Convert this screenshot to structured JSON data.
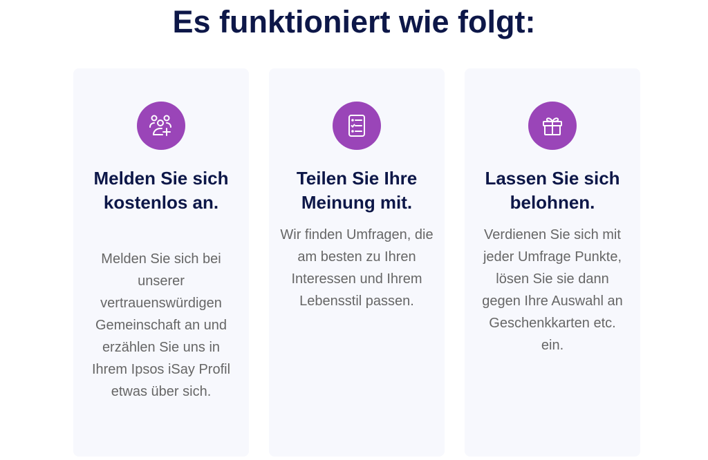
{
  "heading": "Es funktioniert wie folgt:",
  "accent_color": "#9a45b8",
  "cards": [
    {
      "icon": "users-add-icon",
      "title": "Melden Sie sich kostenlos an.",
      "text": "Melden Sie sich bei unserer vertrauenswürdigen Gemeinschaft an und erzählen Sie uns in Ihrem Ipsos iSay Profil etwas über sich."
    },
    {
      "icon": "checklist-icon",
      "title": "Teilen Sie Ihre Meinung mit.",
      "text": "Wir finden Umfragen, die am besten zu Ihren Interessen und Ihrem Lebensstil passen."
    },
    {
      "icon": "gift-icon",
      "title": "Lassen Sie sich belohnen.",
      "text": "Verdienen Sie sich mit jeder Umfrage Punkte, lösen Sie sie dann gegen Ihre Auswahl an Geschenkkarten etc. ein."
    }
  ]
}
